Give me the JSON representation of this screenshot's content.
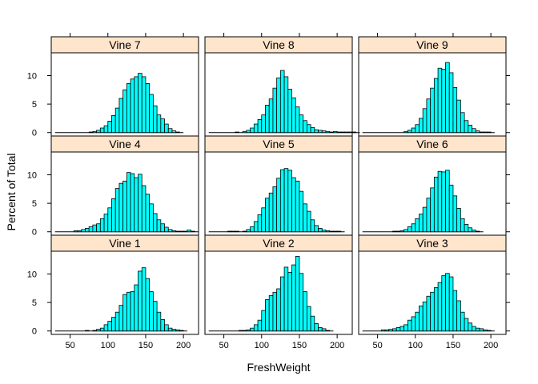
{
  "chart_data": {
    "type": "bar",
    "xlabel": "FreshWeight",
    "ylabel": "Percent of Total",
    "xlim": [
      25,
      220
    ],
    "ylim": [
      -0.6,
      14
    ],
    "xticks": [
      50,
      100,
      150,
      200
    ],
    "yticks": [
      0,
      5,
      10
    ],
    "bin_start": 55,
    "bin_width": 5,
    "bar_fill": "#00ffff",
    "strip_fill": "#ffe5cc",
    "panels": [
      {
        "name": "Vine 7",
        "row": 0,
        "col": 0,
        "values": [
          0,
          0,
          0,
          0,
          0.1,
          0.2,
          0.4,
          0.8,
          1.2,
          2,
          3,
          4.3,
          6,
          7.5,
          8.6,
          9.4,
          9.8,
          10.4,
          9.8,
          8.6,
          6.7,
          4.7,
          3.1,
          2.4,
          1.5,
          0.7,
          0.3,
          0.1
        ]
      },
      {
        "name": "Vine 8",
        "row": 0,
        "col": 1,
        "values": [
          0,
          0,
          0.1,
          0,
          0.2,
          0.4,
          0.8,
          1.5,
          2.3,
          3.1,
          4.8,
          5.9,
          7.8,
          9.6,
          10.9,
          9.8,
          7.6,
          6.1,
          4.5,
          3.1,
          2.1,
          1.4,
          0.9,
          0.5,
          0.4,
          0.3,
          0.2,
          0.1,
          0.2,
          0.1,
          0.1,
          0.1,
          0.1,
          0.1
        ]
      },
      {
        "name": "Vine 9",
        "row": 0,
        "col": 2,
        "values": [
          0,
          0,
          0,
          0,
          0,
          0,
          0.2,
          0.4,
          0.8,
          1.4,
          2.5,
          4.2,
          5.9,
          7.8,
          9.5,
          11.3,
          11.1,
          12.3,
          10.5,
          7.9,
          5.7,
          3.5,
          2.1,
          1.3,
          0.7,
          0.3,
          0.1,
          0.1,
          0.1
        ]
      },
      {
        "name": "Vine 4",
        "row": 1,
        "col": 0,
        "values": [
          0.2,
          0.2,
          0.4,
          0.6,
          0.9,
          1.2,
          1.4,
          2.3,
          3.1,
          4.2,
          5.8,
          7.6,
          8.5,
          8.9,
          10.4,
          10.2,
          9.5,
          10.1,
          8.1,
          6.6,
          4.9,
          3.2,
          2.1,
          1.4,
          0.8,
          0.4,
          0.2,
          0.1,
          0.1,
          0.1,
          0.3,
          0.1
        ]
      },
      {
        "name": "Vine 5",
        "row": 1,
        "col": 1,
        "values": [
          0.1,
          0.1,
          0.1,
          0,
          0.1,
          0.4,
          0.9,
          1.8,
          3,
          4.2,
          5.9,
          6.8,
          7.9,
          9.4,
          10.9,
          11.1,
          10.8,
          9.5,
          8.9,
          7.1,
          4.9,
          3.6,
          2.1,
          1.1,
          0.6,
          0.3,
          0.2,
          0.1,
          0.1,
          0.1
        ]
      },
      {
        "name": "Vine 6",
        "row": 1,
        "col": 2,
        "values": [
          0,
          0,
          0,
          0.1,
          0.1,
          0.2,
          0.4,
          0.9,
          1.4,
          2.3,
          3.1,
          4.3,
          5.9,
          7.7,
          9.6,
          10.6,
          10.5,
          10.8,
          8.2,
          6.3,
          4.1,
          2.3,
          1.3,
          0.7,
          0.3,
          0.1
        ]
      },
      {
        "name": "Vine 1",
        "row": 2,
        "col": 0,
        "values": [
          0,
          0,
          0,
          0.1,
          0,
          0.1,
          0.3,
          0.5,
          1.1,
          1.7,
          2.4,
          3.3,
          4.5,
          6.4,
          6.8,
          6.9,
          8.1,
          10.5,
          11.1,
          9.2,
          6.9,
          5.2,
          3.3,
          2,
          1.1,
          0.5,
          0.3,
          0.2,
          0.1
        ]
      },
      {
        "name": "Vine 2",
        "row": 2,
        "col": 1,
        "values": [
          0,
          0,
          0,
          0.1,
          0.1,
          0.2,
          0.5,
          1.1,
          1.9,
          3.6,
          5.5,
          6.2,
          6.8,
          7.4,
          9.5,
          11.2,
          10.3,
          11.6,
          13.1,
          10.1,
          6.9,
          4.3,
          2.6,
          1.3,
          0.6,
          0.4,
          0.1
        ]
      },
      {
        "name": "Vine 3",
        "row": 2,
        "col": 2,
        "values": [
          0.2,
          0.2,
          0.3,
          0.4,
          0.6,
          0.8,
          1.1,
          1.9,
          2.5,
          3.3,
          4.4,
          5.1,
          6.1,
          6.8,
          7.6,
          8.5,
          9.7,
          10.1,
          9.5,
          7.1,
          5.3,
          3.3,
          2.2,
          1.4,
          0.8,
          0.5,
          0.4,
          0.2,
          0.1
        ]
      }
    ]
  }
}
